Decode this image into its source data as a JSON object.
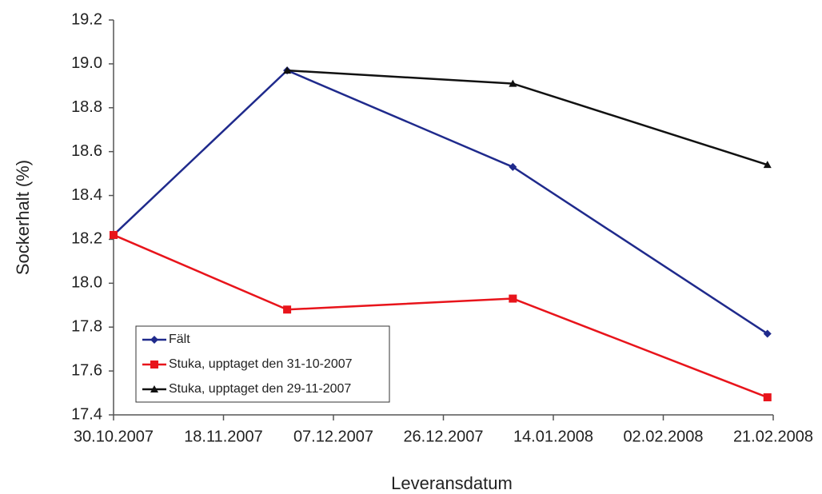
{
  "chart_data": {
    "type": "line",
    "x_label": "Leveransdatum",
    "y_label": "Sockerhalt (%)",
    "x": [
      "2007-10-30",
      "2007-11-29",
      "2008-01-07",
      "2008-02-20"
    ],
    "series": [
      {
        "name": "Fält",
        "color": "#1f2a8c",
        "marker": "diamond",
        "values": [
          18.22,
          18.97,
          18.53,
          17.77
        ]
      },
      {
        "name": "Stuka, upptaget den 31-10-2007",
        "color": "#e8141b",
        "marker": "square",
        "values": [
          18.22,
          17.88,
          17.93,
          17.48
        ]
      },
      {
        "name": "Stuka, upptaget den 29-11-2007",
        "color": "#111111",
        "marker": "triangle",
        "values": [
          null,
          18.97,
          18.91,
          18.54
        ]
      }
    ],
    "xlim": [
      "2007-10-30",
      "2008-02-21"
    ],
    "xticks": [
      {
        "value": "2007-10-30",
        "label": "30.10.2007"
      },
      {
        "value": "2007-11-18",
        "label": "18.11.2007"
      },
      {
        "value": "2007-12-07",
        "label": "07.12.2007"
      },
      {
        "value": "2007-12-26",
        "label": "26.12.2007"
      },
      {
        "value": "2008-01-14",
        "label": "14.01.2008"
      },
      {
        "value": "2008-02-02",
        "label": "02.02.2008"
      },
      {
        "value": "2008-02-21",
        "label": "21.02.2008"
      }
    ],
    "ylim": [
      17.4,
      19.2
    ],
    "yticks": [
      {
        "value": 17.4,
        "label": "17.4"
      },
      {
        "value": 17.6,
        "label": "17.6"
      },
      {
        "value": 17.8,
        "label": "17.8"
      },
      {
        "value": 18.0,
        "label": "18.0"
      },
      {
        "value": 18.2,
        "label": "18.2"
      },
      {
        "value": 18.4,
        "label": "18.4"
      },
      {
        "value": 18.6,
        "label": "18.6"
      },
      {
        "value": 18.8,
        "label": "18.8"
      },
      {
        "value": 19.0,
        "label": "19.0"
      },
      {
        "value": 19.2,
        "label": "19.2"
      }
    ],
    "grid": false,
    "legend": "lower-left"
  }
}
